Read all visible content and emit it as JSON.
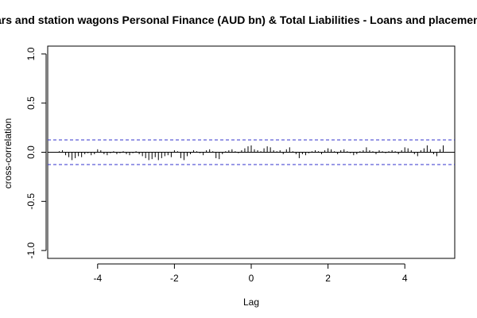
{
  "chart_data": {
    "type": "bar",
    "title": "Cars and station wagons Personal Finance (AUD bn) & Total Liabilities - Loans and placements",
    "xlabel": "Lag",
    "ylabel": "cross-correlation",
    "xlim": [
      -5.3,
      5.3
    ],
    "ylim": [
      -1.08,
      1.08
    ],
    "x_ticks": [
      -4,
      -2,
      0,
      2,
      4
    ],
    "x_tick_labels": [
      "-4",
      "-2",
      "0",
      "2",
      "4"
    ],
    "y_ticks": [
      -1.0,
      -0.5,
      0.0,
      0.5,
      1.0
    ],
    "y_tick_labels": [
      "-1.0",
      "-0.5",
      "0.0",
      "0.5",
      "1.0"
    ],
    "confidence_limit": 0.125,
    "colors": {
      "bars": "#000000",
      "confidence": "#3333cc",
      "zero_line": "#000000"
    },
    "x": [
      -5.0,
      -4.917,
      -4.833,
      -4.75,
      -4.667,
      -4.583,
      -4.5,
      -4.417,
      -4.333,
      -4.25,
      -4.167,
      -4.083,
      -4.0,
      -3.917,
      -3.833,
      -3.75,
      -3.667,
      -3.583,
      -3.5,
      -3.417,
      -3.333,
      -3.25,
      -3.167,
      -3.083,
      -3.0,
      -2.917,
      -2.833,
      -2.75,
      -2.667,
      -2.583,
      -2.5,
      -2.417,
      -2.333,
      -2.25,
      -2.167,
      -2.083,
      -2.0,
      -1.917,
      -1.833,
      -1.75,
      -1.667,
      -1.583,
      -1.5,
      -1.417,
      -1.333,
      -1.25,
      -1.167,
      -1.083,
      -1.0,
      -0.917,
      -0.833,
      -0.75,
      -0.667,
      -0.583,
      -0.5,
      -0.417,
      -0.333,
      -0.25,
      -0.167,
      -0.083,
      0.0,
      0.083,
      0.167,
      0.25,
      0.333,
      0.417,
      0.5,
      0.583,
      0.667,
      0.75,
      0.833,
      0.917,
      1.0,
      1.083,
      1.167,
      1.25,
      1.333,
      1.417,
      1.5,
      1.583,
      1.667,
      1.75,
      1.833,
      1.917,
      2.0,
      2.083,
      2.167,
      2.25,
      2.333,
      2.417,
      2.5,
      2.583,
      2.667,
      2.75,
      2.833,
      2.917,
      3.0,
      3.083,
      3.167,
      3.25,
      3.333,
      3.417,
      3.5,
      3.583,
      3.667,
      3.75,
      3.833,
      3.917,
      4.0,
      4.083,
      4.167,
      4.25,
      4.333,
      4.417,
      4.5,
      4.583,
      4.667,
      4.75,
      4.833,
      4.917,
      5.0
    ],
    "values": [
      0.01,
      0.02,
      -0.03,
      -0.05,
      -0.08,
      -0.06,
      -0.04,
      -0.05,
      -0.02,
      -0.01,
      -0.03,
      -0.02,
      0.03,
      0.02,
      -0.02,
      -0.03,
      -0.01,
      0.01,
      -0.02,
      -0.01,
      0.01,
      -0.02,
      -0.03,
      -0.01,
      0.01,
      -0.02,
      -0.04,
      -0.06,
      -0.08,
      -0.07,
      -0.05,
      -0.08,
      -0.06,
      -0.04,
      -0.03,
      -0.05,
      0.02,
      0.01,
      -0.06,
      -0.08,
      -0.04,
      -0.02,
      0.02,
      0.01,
      -0.01,
      -0.03,
      0.02,
      0.03,
      0.01,
      -0.06,
      -0.07,
      -0.02,
      0.01,
      0.02,
      0.03,
      0.01,
      -0.01,
      0.02,
      0.04,
      0.06,
      0.07,
      0.03,
      0.02,
      0.01,
      0.04,
      0.06,
      0.05,
      0.02,
      0.01,
      0.02,
      -0.02,
      0.03,
      0.05,
      0.01,
      -0.02,
      -0.06,
      -0.02,
      -0.03,
      -0.01,
      0.01,
      0.02,
      0.01,
      -0.02,
      0.02,
      0.04,
      0.03,
      0.01,
      -0.02,
      0.02,
      0.03,
      0.01,
      -0.01,
      -0.03,
      -0.02,
      0.01,
      0.02,
      0.05,
      0.02,
      0.01,
      -0.02,
      0.02,
      0.01,
      -0.01,
      0.01,
      0.02,
      0.01,
      -0.02,
      0.02,
      0.05,
      0.04,
      0.02,
      -0.02,
      -0.04,
      0.02,
      0.04,
      0.07,
      0.03,
      -0.02,
      -0.04,
      0.03,
      0.07
    ]
  }
}
